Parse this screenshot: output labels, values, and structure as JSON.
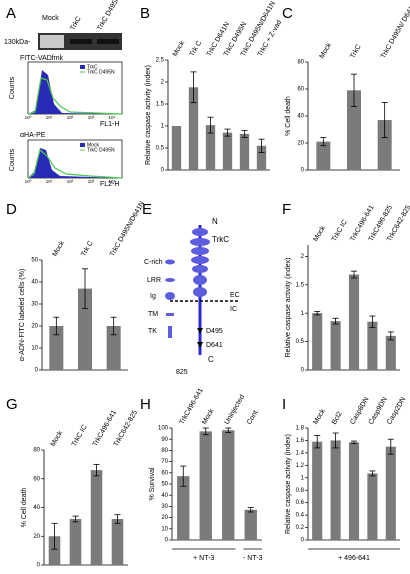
{
  "panel_a": {
    "label": "A",
    "size_marker": "130kDa-",
    "lanes": [
      "Mock",
      "TrkC",
      "TrkC D495N"
    ],
    "hist1": {
      "title": "FITC-VADfmk",
      "legend": [
        "TrkC",
        "TrkC D495N"
      ],
      "y_label": "Counts",
      "x_label": "FL1-H"
    },
    "hist2": {
      "title": "αHA-PE",
      "legend": [
        "Mock",
        "TrkC D495N"
      ],
      "y_label": "Counts",
      "x_label": "FL2-H"
    },
    "decades": [
      "10⁰",
      "10¹",
      "10²",
      "10³",
      "10⁴"
    ]
  },
  "panel_e": {
    "label": "E",
    "nodes": [
      "N",
      "TrkC",
      "C-rich",
      "LRR",
      "Ig",
      "TM",
      "TK",
      "EC",
      "IC",
      "D495",
      "D641",
      "825",
      "C"
    ]
  },
  "chart_data": [
    {
      "type": "bar",
      "label": "B",
      "y_label": "Relative caspase activity (index)",
      "color": "#7b7b7b",
      "categories": [
        "Mock",
        "Trk C",
        "TrkC D641N",
        "TrkC D495N",
        "TrkC D495N/D641N",
        "TrkC + Z-vad"
      ],
      "values": [
        1.0,
        1.88,
        1.02,
        0.85,
        0.82,
        0.55
      ],
      "errors": [
        0,
        0.35,
        0.18,
        0.08,
        0.08,
        0.15
      ],
      "ylim": [
        0,
        2.5
      ],
      "yticks": [
        0,
        0.5,
        1,
        1.5,
        2,
        2.5
      ]
    },
    {
      "type": "bar",
      "label": "C",
      "y_label": "% Cell death",
      "color": "#7b7b7b",
      "categories": [
        "Mock",
        "TrkC",
        "TrkC D495N/ D641N"
      ],
      "values": [
        21,
        59,
        37
      ],
      "errors": [
        3,
        12,
        13
      ],
      "ylim": [
        0,
        80
      ],
      "yticks": [
        0,
        20,
        40,
        60,
        80
      ]
    },
    {
      "type": "bar",
      "label": "D",
      "y_label": "α-ADN-FITC labeled cells (%)",
      "color": "#7b7b7b",
      "categories": [
        "Mock",
        "Trk C",
        "TrkC D495N/D641N"
      ],
      "values": [
        20,
        37,
        20
      ],
      "errors": [
        4,
        9,
        4
      ],
      "ylim": [
        0,
        50
      ],
      "yticks": [
        0,
        10,
        20,
        30,
        40,
        50
      ]
    },
    {
      "type": "bar",
      "label": "F",
      "y_label": "Relative caspase activity (index)",
      "color": "#7b7b7b",
      "categories": [
        "Mock",
        "TrkC IC",
        "TrkC496-641",
        "TrkC496-825",
        "TrkC642-825"
      ],
      "values": [
        1.0,
        0.86,
        1.68,
        0.85,
        0.6
      ],
      "errors": [
        0.03,
        0.05,
        0.06,
        0.1,
        0.07
      ],
      "ylim": [
        0,
        2.2
      ],
      "yticks": [
        0,
        0.5,
        1,
        1.5,
        2
      ]
    },
    {
      "type": "bar",
      "label": "G",
      "y_label": "% Cell death",
      "color": "#7b7b7b",
      "categories": [
        "Mock",
        "TrkC IC",
        "TrkC496-641",
        "TrkC642-825"
      ],
      "values": [
        20,
        32,
        66,
        32
      ],
      "errors": [
        9,
        2,
        4,
        3
      ],
      "ylim": [
        0,
        80
      ],
      "yticks": [
        0,
        20,
        40,
        60,
        80
      ]
    },
    {
      "type": "bar",
      "label": "H",
      "y_label": "% Survival",
      "color": "#7b7b7b",
      "categories": [
        "TrkC496-641",
        "Mock",
        "Uninjected",
        "Cont."
      ],
      "values": [
        57,
        97,
        98,
        27
      ],
      "errors": [
        9,
        3,
        2,
        2
      ],
      "ylim": [
        0,
        100
      ],
      "yticks": [
        0,
        10,
        20,
        30,
        40,
        50,
        60,
        70,
        80,
        90,
        100
      ],
      "annotations": [
        "+ NT-3",
        "- NT-3"
      ]
    },
    {
      "type": "bar",
      "label": "I",
      "y_label": "Relative caspase activity (index)",
      "color": "#7b7b7b",
      "categories": [
        "Mock",
        "Bcl2",
        "Casp8DN",
        "Casp9DN",
        "Casp2DN"
      ],
      "values": [
        1.58,
        1.6,
        1.57,
        1.07,
        1.5
      ],
      "errors": [
        0.1,
        0.12,
        0.02,
        0.04,
        0.12
      ],
      "ylim": [
        0,
        1.8
      ],
      "yticks": [
        0,
        0.2,
        0.4,
        0.6,
        0.8,
        1,
        1.2,
        1.4,
        1.6,
        1.8
      ],
      "annotations": [
        "+ 496-641"
      ]
    }
  ]
}
